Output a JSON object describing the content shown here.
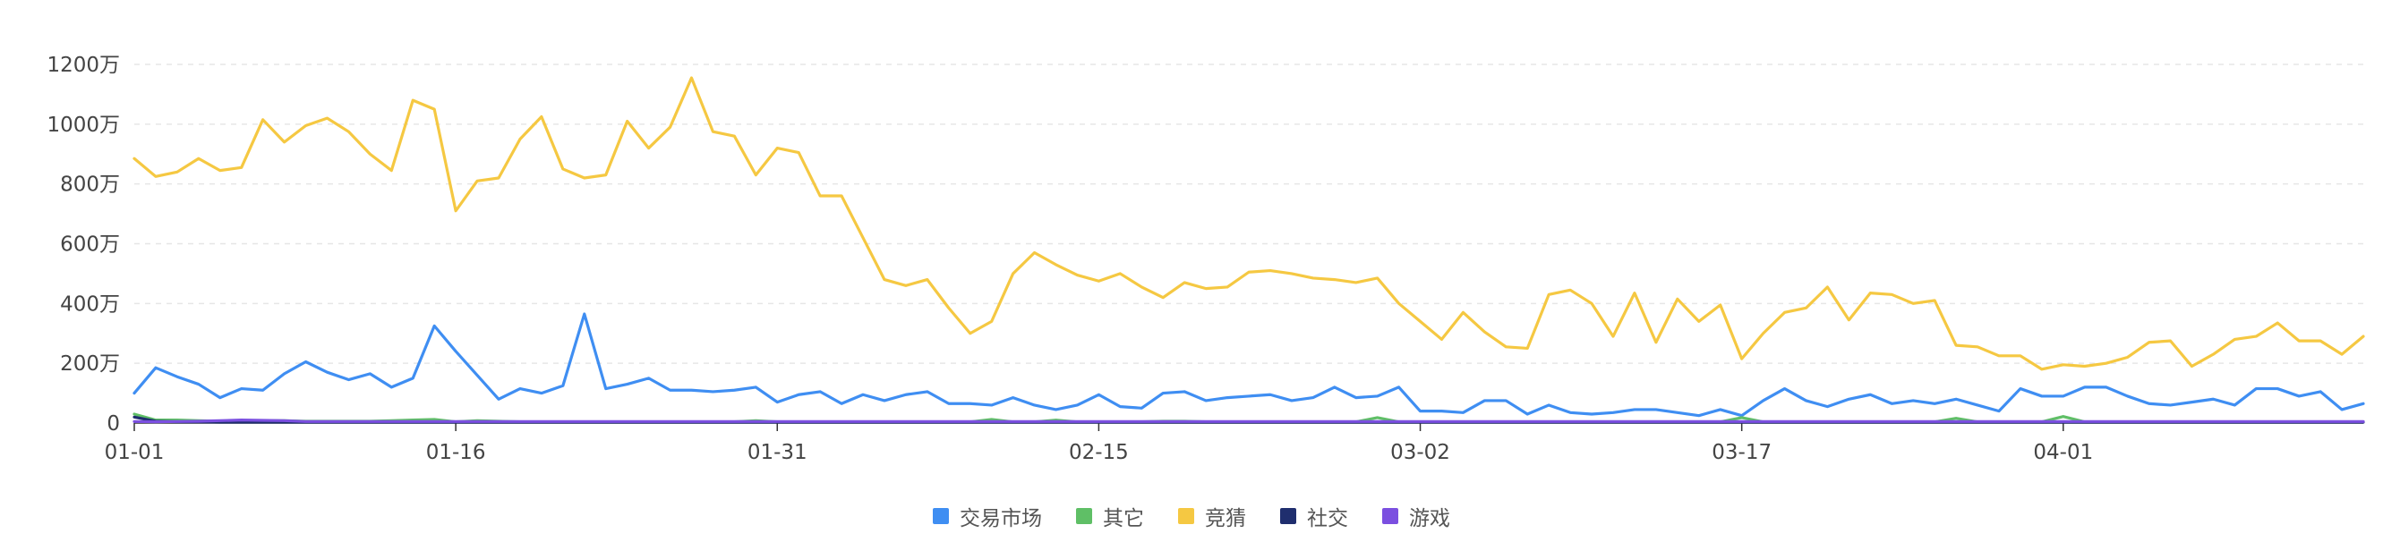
{
  "chart_data": {
    "type": "line",
    "title": "",
    "xlabel": "",
    "ylabel": "",
    "ylim": [
      0,
      1200
    ],
    "y_unit": "万",
    "y_ticks": [
      "0",
      "200万",
      "400万",
      "600万",
      "800万",
      "1000万",
      "1200万"
    ],
    "y_tick_values": [
      0,
      200,
      400,
      600,
      800,
      1000,
      1200
    ],
    "x_ticks": [
      "01-01",
      "01-16",
      "01-31",
      "02-15",
      "03-02",
      "03-17",
      "04-01"
    ],
    "x_tick_index": [
      0,
      15,
      30,
      45,
      60,
      75,
      90
    ],
    "grid": "horizontal dashed",
    "legend_position": "bottom-center",
    "series": [
      {
        "name": "交易市场",
        "color": "#3f8ef2",
        "values": [
          100,
          185,
          155,
          130,
          85,
          115,
          110,
          165,
          205,
          170,
          145,
          165,
          120,
          150,
          325,
          240,
          160,
          80,
          115,
          100,
          125,
          365,
          115,
          130,
          150,
          110,
          110,
          105,
          110,
          120,
          70,
          95,
          105,
          65,
          95,
          75,
          95,
          105,
          65,
          65,
          60,
          85,
          60,
          45,
          60,
          95,
          55,
          50,
          100,
          105,
          75,
          85,
          90,
          95,
          75,
          85,
          120,
          85,
          90,
          120,
          40,
          40,
          35,
          75,
          75,
          30,
          60,
          35,
          30,
          35,
          45,
          45,
          35,
          25,
          45,
          25,
          75,
          115,
          75,
          55,
          80,
          95,
          65,
          75,
          65,
          80,
          60,
          40,
          115,
          90,
          90,
          120,
          120,
          90,
          65,
          60,
          70,
          80,
          60,
          115,
          115,
          90,
          105,
          45,
          65
        ]
      },
      {
        "name": "其它",
        "color": "#5fbf66",
        "values": [
          30,
          10,
          10,
          8,
          6,
          8,
          8,
          8,
          6,
          6,
          6,
          6,
          8,
          10,
          12,
          4,
          8,
          6,
          4,
          4,
          4,
          4,
          4,
          4,
          4,
          4,
          4,
          4,
          4,
          8,
          4,
          4,
          4,
          4,
          4,
          4,
          4,
          4,
          4,
          4,
          12,
          4,
          4,
          10,
          4,
          4,
          4,
          4,
          6,
          6,
          4,
          4,
          4,
          4,
          4,
          4,
          4,
          4,
          18,
          4,
          4,
          4,
          4,
          4,
          4,
          4,
          4,
          4,
          4,
          4,
          4,
          4,
          4,
          4,
          4,
          18,
          4,
          4,
          4,
          4,
          4,
          4,
          4,
          4,
          4,
          16,
          4,
          4,
          4,
          4,
          22,
          4,
          4,
          4,
          4,
          4,
          4,
          4,
          4,
          4,
          4,
          4,
          4,
          4,
          4
        ]
      },
      {
        "name": "竞猜",
        "color": "#f5c842",
        "values": [
          885,
          825,
          840,
          885,
          845,
          855,
          1015,
          940,
          995,
          1020,
          975,
          900,
          845,
          1080,
          1050,
          710,
          810,
          820,
          950,
          1025,
          850,
          820,
          830,
          1010,
          920,
          990,
          1155,
          975,
          960,
          830,
          920,
          905,
          760,
          760,
          620,
          480,
          460,
          480,
          385,
          300,
          340,
          500,
          570,
          530,
          495,
          475,
          500,
          455,
          420,
          470,
          450,
          455,
          505,
          510,
          500,
          485,
          480,
          470,
          485,
          400,
          340,
          280,
          370,
          305,
          255,
          250,
          430,
          445,
          400,
          290,
          435,
          270,
          415,
          340,
          395,
          215,
          300,
          370,
          385,
          455,
          345,
          435,
          430,
          400,
          410,
          260,
          255,
          225,
          225,
          180,
          195,
          190,
          200,
          220,
          270,
          275,
          190,
          230,
          280,
          290,
          335,
          275,
          275,
          230,
          290
        ]
      },
      {
        "name": "社交",
        "color": "#1f2e6e",
        "values": [
          20,
          6,
          4,
          4,
          3,
          3,
          3,
          3,
          3,
          3,
          3,
          3,
          3,
          3,
          3,
          3,
          3,
          3,
          3,
          3,
          3,
          3,
          3,
          3,
          3,
          3,
          3,
          3,
          3,
          3,
          3,
          3,
          3,
          3,
          3,
          3,
          3,
          3,
          3,
          3,
          3,
          3,
          3,
          3,
          3,
          3,
          3,
          3,
          3,
          3,
          3,
          3,
          3,
          3,
          3,
          3,
          3,
          3,
          3,
          3,
          3,
          3,
          3,
          3,
          3,
          3,
          3,
          3,
          3,
          3,
          3,
          3,
          3,
          3,
          3,
          3,
          3,
          3,
          3,
          3,
          3,
          3,
          3,
          3,
          3,
          3,
          3,
          3,
          3,
          3,
          3,
          3,
          3,
          3,
          3,
          3,
          3,
          3,
          3,
          3,
          3,
          3,
          3,
          3,
          3
        ]
      },
      {
        "name": "游戏",
        "color": "#7b4fe0",
        "values": [
          5,
          4,
          5,
          6,
          8,
          10,
          9,
          8,
          5,
          5,
          5,
          5,
          5,
          5,
          5,
          5,
          5,
          5,
          5,
          5,
          5,
          5,
          5,
          5,
          5,
          5,
          5,
          5,
          5,
          5,
          5,
          5,
          5,
          5,
          5,
          5,
          5,
          5,
          5,
          5,
          5,
          5,
          5,
          5,
          5,
          5,
          5,
          5,
          5,
          5,
          5,
          5,
          5,
          5,
          5,
          5,
          5,
          5,
          5,
          5,
          5,
          5,
          5,
          5,
          5,
          5,
          5,
          5,
          5,
          5,
          5,
          5,
          5,
          5,
          5,
          5,
          5,
          5,
          5,
          5,
          5,
          5,
          5,
          5,
          5,
          5,
          5,
          5,
          5,
          5,
          5,
          5,
          5,
          5,
          5,
          5,
          5,
          5,
          5,
          5,
          5,
          5,
          5,
          5,
          5
        ]
      }
    ]
  }
}
